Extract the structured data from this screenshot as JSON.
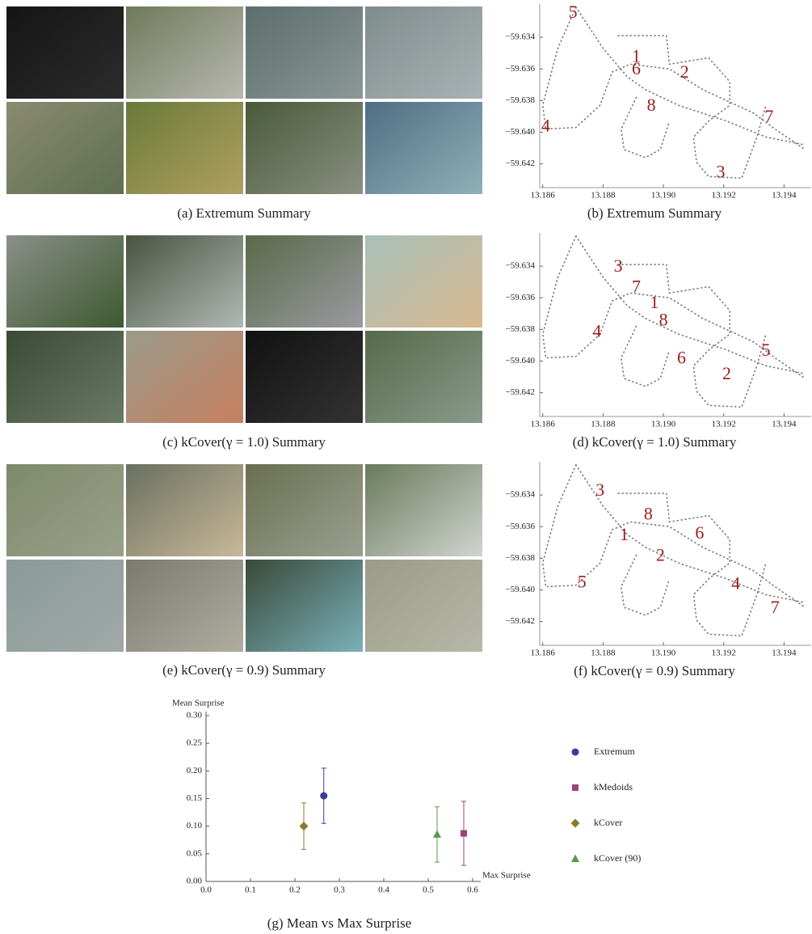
{
  "image_panels": [
    {
      "caption": "(a) Extremum Summary"
    },
    {
      "caption": "(c) kCover(γ = 1.0) Summary"
    },
    {
      "caption": "(e) kCover(γ = 0.9) Summary"
    }
  ],
  "chart_data": [
    {
      "type": "map",
      "caption": "(b) Extremum Summary",
      "xlim": [
        13.1859,
        13.1949
      ],
      "ylim": [
        -59.6435,
        -59.6319
      ],
      "xticks": [
        13.186,
        13.188,
        {
          "value": 13.19,
          "label": "13.190"
        },
        13.192,
        13.194
      ],
      "yticks": [
        {
          "value": -59.634,
          "label": "−59.634"
        },
        {
          "value": -59.636,
          "label": "−59.636"
        },
        {
          "value": -59.638,
          "label": "−59.638"
        },
        {
          "value": -59.64,
          "label": "−59.640"
        },
        {
          "value": -59.642,
          "label": "−59.642"
        }
      ],
      "series": [
        {
          "color": "#777777",
          "x": [
            13.1871,
            13.188,
            13.1888,
            13.1894,
            13.1905,
            13.1921,
            13.1934,
            13.1947
          ],
          "y": [
            -59.6321,
            -59.6347,
            -59.6365,
            -59.6373,
            -59.6383,
            -59.6393,
            -59.6403,
            -59.6408
          ]
        },
        {
          "color": "#777777",
          "x": [
            13.1871,
            13.1865,
            13.186,
            13.1861,
            13.1871,
            13.1879,
            13.1883,
            13.1889,
            13.1902,
            13.1913,
            13.193,
            13.1937,
            13.1947
          ],
          "y": [
            -59.6321,
            -59.6347,
            -59.6383,
            -59.6398,
            -59.6397,
            -59.6383,
            -59.6362,
            -59.6357,
            -59.636,
            -59.6373,
            -59.6388,
            -59.6398,
            -59.6411
          ]
        },
        {
          "color": "#777777",
          "x": [
            13.1885,
            13.1901,
            13.1902,
            13.1915,
            13.1922,
            13.1922,
            13.1915,
            13.191,
            13.1911,
            13.1915,
            13.1926,
            13.1931,
            13.1934
          ],
          "y": [
            -59.6339,
            -59.6339,
            -59.6357,
            -59.6353,
            -59.6368,
            -59.6383,
            -59.6393,
            -59.6403,
            -59.6419,
            -59.6428,
            -59.6429,
            -59.6403,
            -59.6383
          ]
        },
        {
          "color": "#777777",
          "x": [
            13.1891,
            13.1886,
            13.1887,
            13.1894,
            13.1899,
            13.1902
          ],
          "y": [
            -59.6378,
            -59.6398,
            -59.6411,
            -59.6416,
            -59.6411,
            -59.6393
          ]
        }
      ],
      "annotation_color": "#9b1c1c",
      "annotations": [
        {
          "text": "5",
          "x": 13.187,
          "y": -59.6325
        },
        {
          "text": "1",
          "x": 13.1891,
          "y": -59.6353
        },
        {
          "text": "6",
          "x": 13.1891,
          "y": -59.6361
        },
        {
          "text": "2",
          "x": 13.1907,
          "y": -59.6363
        },
        {
          "text": "8",
          "x": 13.1896,
          "y": -59.6384
        },
        {
          "text": "7",
          "x": 13.1935,
          "y": -59.6391
        },
        {
          "text": "4",
          "x": 13.1861,
          "y": -59.6397
        },
        {
          "text": "3",
          "x": 13.1919,
          "y": -59.6426
        }
      ]
    },
    {
      "type": "map",
      "caption": "(d) kCover(γ = 1.0) Summary",
      "xlim": [
        13.1859,
        13.1949
      ],
      "ylim": [
        -59.6435,
        -59.6319
      ],
      "xticks": [
        13.186,
        13.188,
        {
          "value": 13.19,
          "label": "13.190"
        },
        13.192,
        13.194
      ],
      "yticks": [
        {
          "value": -59.634,
          "label": "−59.634"
        },
        {
          "value": -59.636,
          "label": "−59.636"
        },
        {
          "value": -59.638,
          "label": "−59.638"
        },
        {
          "value": -59.64,
          "label": "−59.640"
        },
        {
          "value": -59.642,
          "label": "−59.642"
        }
      ],
      "series": [
        {
          "color": "#777777",
          "x": [
            13.1871,
            13.188,
            13.1888,
            13.1894,
            13.1905,
            13.1921,
            13.1934,
            13.1947
          ],
          "y": [
            -59.6321,
            -59.6347,
            -59.6365,
            -59.6373,
            -59.6383,
            -59.6393,
            -59.6403,
            -59.6408
          ]
        },
        {
          "color": "#777777",
          "x": [
            13.1871,
            13.1865,
            13.186,
            13.1861,
            13.1871,
            13.1879,
            13.1883,
            13.1889,
            13.1902,
            13.1913,
            13.193,
            13.1937,
            13.1947
          ],
          "y": [
            -59.6321,
            -59.6347,
            -59.6383,
            -59.6398,
            -59.6397,
            -59.6383,
            -59.6362,
            -59.6357,
            -59.636,
            -59.6373,
            -59.6388,
            -59.6398,
            -59.6411
          ]
        },
        {
          "color": "#777777",
          "x": [
            13.1885,
            13.1901,
            13.1902,
            13.1915,
            13.1922,
            13.1922,
            13.1915,
            13.191,
            13.1911,
            13.1915,
            13.1926,
            13.1931,
            13.1934
          ],
          "y": [
            -59.6339,
            -59.6339,
            -59.6357,
            -59.6353,
            -59.6368,
            -59.6383,
            -59.6393,
            -59.6403,
            -59.6419,
            -59.6428,
            -59.6429,
            -59.6403,
            -59.6383
          ]
        },
        {
          "color": "#777777",
          "x": [
            13.1891,
            13.1886,
            13.1887,
            13.1894,
            13.1899,
            13.1902
          ],
          "y": [
            -59.6378,
            -59.6398,
            -59.6411,
            -59.6416,
            -59.6411,
            -59.6393
          ]
        }
      ],
      "annotation_color": "#9b1c1c",
      "annotations": [
        {
          "text": "3",
          "x": 13.1885,
          "y": -59.6341
        },
        {
          "text": "7",
          "x": 13.1891,
          "y": -59.6354
        },
        {
          "text": "1",
          "x": 13.1897,
          "y": -59.6364
        },
        {
          "text": "8",
          "x": 13.19,
          "y": -59.6375
        },
        {
          "text": "4",
          "x": 13.1878,
          "y": -59.6382
        },
        {
          "text": "6",
          "x": 13.1906,
          "y": -59.6399
        },
        {
          "text": "5",
          "x": 13.1934,
          "y": -59.6394
        },
        {
          "text": "2",
          "x": 13.1921,
          "y": -59.6409
        }
      ]
    },
    {
      "type": "map",
      "caption": "(f) kCover(γ = 0.9) Summary",
      "xlim": [
        13.1859,
        13.1949
      ],
      "ylim": [
        -59.6435,
        -59.6319
      ],
      "xticks": [
        13.186,
        13.188,
        {
          "value": 13.19,
          "label": "13.190"
        },
        13.192,
        13.194
      ],
      "yticks": [
        {
          "value": -59.634,
          "label": "−59.634"
        },
        {
          "value": -59.636,
          "label": "−59.636"
        },
        {
          "value": -59.638,
          "label": "−59.638"
        },
        {
          "value": -59.64,
          "label": "−59.640"
        },
        {
          "value": -59.642,
          "label": "−59.642"
        }
      ],
      "series": [
        {
          "color": "#777777",
          "x": [
            13.1871,
            13.188,
            13.1888,
            13.1894,
            13.1905,
            13.1921,
            13.1934,
            13.1947
          ],
          "y": [
            -59.6321,
            -59.6347,
            -59.6365,
            -59.6373,
            -59.6383,
            -59.6393,
            -59.6403,
            -59.6408
          ]
        },
        {
          "color": "#777777",
          "x": [
            13.1871,
            13.1865,
            13.186,
            13.1861,
            13.1871,
            13.1879,
            13.1883,
            13.1889,
            13.1902,
            13.1913,
            13.193,
            13.1937,
            13.1947
          ],
          "y": [
            -59.6321,
            -59.6347,
            -59.6383,
            -59.6398,
            -59.6397,
            -59.6383,
            -59.6362,
            -59.6357,
            -59.636,
            -59.6373,
            -59.6388,
            -59.6398,
            -59.6411
          ]
        },
        {
          "color": "#777777",
          "x": [
            13.1885,
            13.1901,
            13.1902,
            13.1915,
            13.1922,
            13.1922,
            13.1915,
            13.191,
            13.1911,
            13.1915,
            13.1926,
            13.1931,
            13.1934
          ],
          "y": [
            -59.6339,
            -59.6339,
            -59.6357,
            -59.6353,
            -59.6368,
            -59.6383,
            -59.6393,
            -59.6403,
            -59.6419,
            -59.6428,
            -59.6429,
            -59.6403,
            -59.6383
          ]
        },
        {
          "color": "#777777",
          "x": [
            13.1891,
            13.1886,
            13.1887,
            13.1894,
            13.1899,
            13.1902
          ],
          "y": [
            -59.6378,
            -59.6398,
            -59.6411,
            -59.6416,
            -59.6411,
            -59.6393
          ]
        }
      ],
      "annotation_color": "#9b1c1c",
      "annotations": [
        {
          "text": "3",
          "x": 13.1879,
          "y": -59.6338
        },
        {
          "text": "8",
          "x": 13.1895,
          "y": -59.6353
        },
        {
          "text": "6",
          "x": 13.1912,
          "y": -59.6365
        },
        {
          "text": "1",
          "x": 13.1887,
          "y": -59.6366
        },
        {
          "text": "2",
          "x": 13.1899,
          "y": -59.6379
        },
        {
          "text": "4",
          "x": 13.1924,
          "y": -59.6397
        },
        {
          "text": "5",
          "x": 13.1873,
          "y": -59.6396
        },
        {
          "text": "7",
          "x": 13.1937,
          "y": -59.6412
        }
      ]
    },
    {
      "type": "scatter",
      "caption": "(g) Mean vs Max Surprise",
      "y_label": "Mean Surprise",
      "x_label": "Max Surprise",
      "xlim": [
        0,
        0.6
      ],
      "ylim": [
        0,
        0.3
      ],
      "xticks": [
        {
          "value": 0,
          "label": "0.0"
        },
        0.1,
        0.2,
        0.3,
        0.4,
        0.5,
        0.6
      ],
      "yticks": [
        {
          "value": 0,
          "label": "0.00"
        },
        0.05,
        {
          "value": 0.1,
          "label": "0.10"
        },
        0.15,
        {
          "value": 0.2,
          "label": "0.20"
        },
        0.25,
        {
          "value": 0.3,
          "label": "0.30"
        }
      ],
      "series": [
        {
          "name": "Extremum",
          "color": "#3b3b9a",
          "marker": "circle",
          "x": [
            0.265
          ],
          "values": [
            0.155
          ],
          "errors": [
            0.05
          ]
        },
        {
          "name": "kMedoids",
          "color": "#a0407a",
          "marker": "square",
          "x": [
            0.58
          ],
          "values": [
            0.087
          ],
          "errors": [
            0.058
          ]
        },
        {
          "name": "kCover",
          "color": "#8a7a2a",
          "marker": "diamond",
          "x": [
            0.22
          ],
          "values": [
            0.1
          ],
          "errors": [
            0.042
          ]
        },
        {
          "name": "kCover (90)",
          "color": "#5a9a4a",
          "marker": "triangle",
          "x": [
            0.52
          ],
          "values": [
            0.085
          ],
          "errors": [
            0.05
          ]
        }
      ]
    }
  ]
}
